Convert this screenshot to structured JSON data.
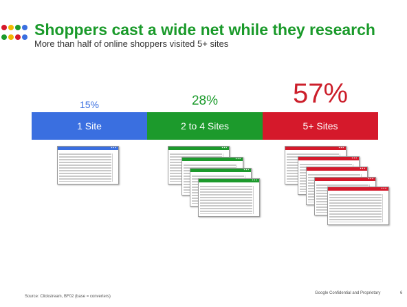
{
  "header": {
    "title": "Shoppers cast a wide net while they research",
    "subtitle": "More than half of online shoppers visited 5+ sites"
  },
  "segments": [
    {
      "percent": "15%",
      "label": "1 Site",
      "share": 15,
      "windows": 1,
      "color": "#3a6fe0"
    },
    {
      "percent": "28%",
      "label": "2 to 4 Sites",
      "share": 28,
      "windows": 4,
      "color": "#1c9a2c"
    },
    {
      "percent": "57%",
      "label": "5+ Sites",
      "share": 57,
      "windows": 5,
      "color": "#d5192b"
    }
  ],
  "logo_dots": [
    "#3a6fe0",
    "#d5192b",
    "#f2b700",
    "#1c9a2c"
  ],
  "footer": {
    "source": "Source: Clickstream, BF02 (base = converters)",
    "confidential": "Google Confidential and Proprietary",
    "page": "6"
  }
}
